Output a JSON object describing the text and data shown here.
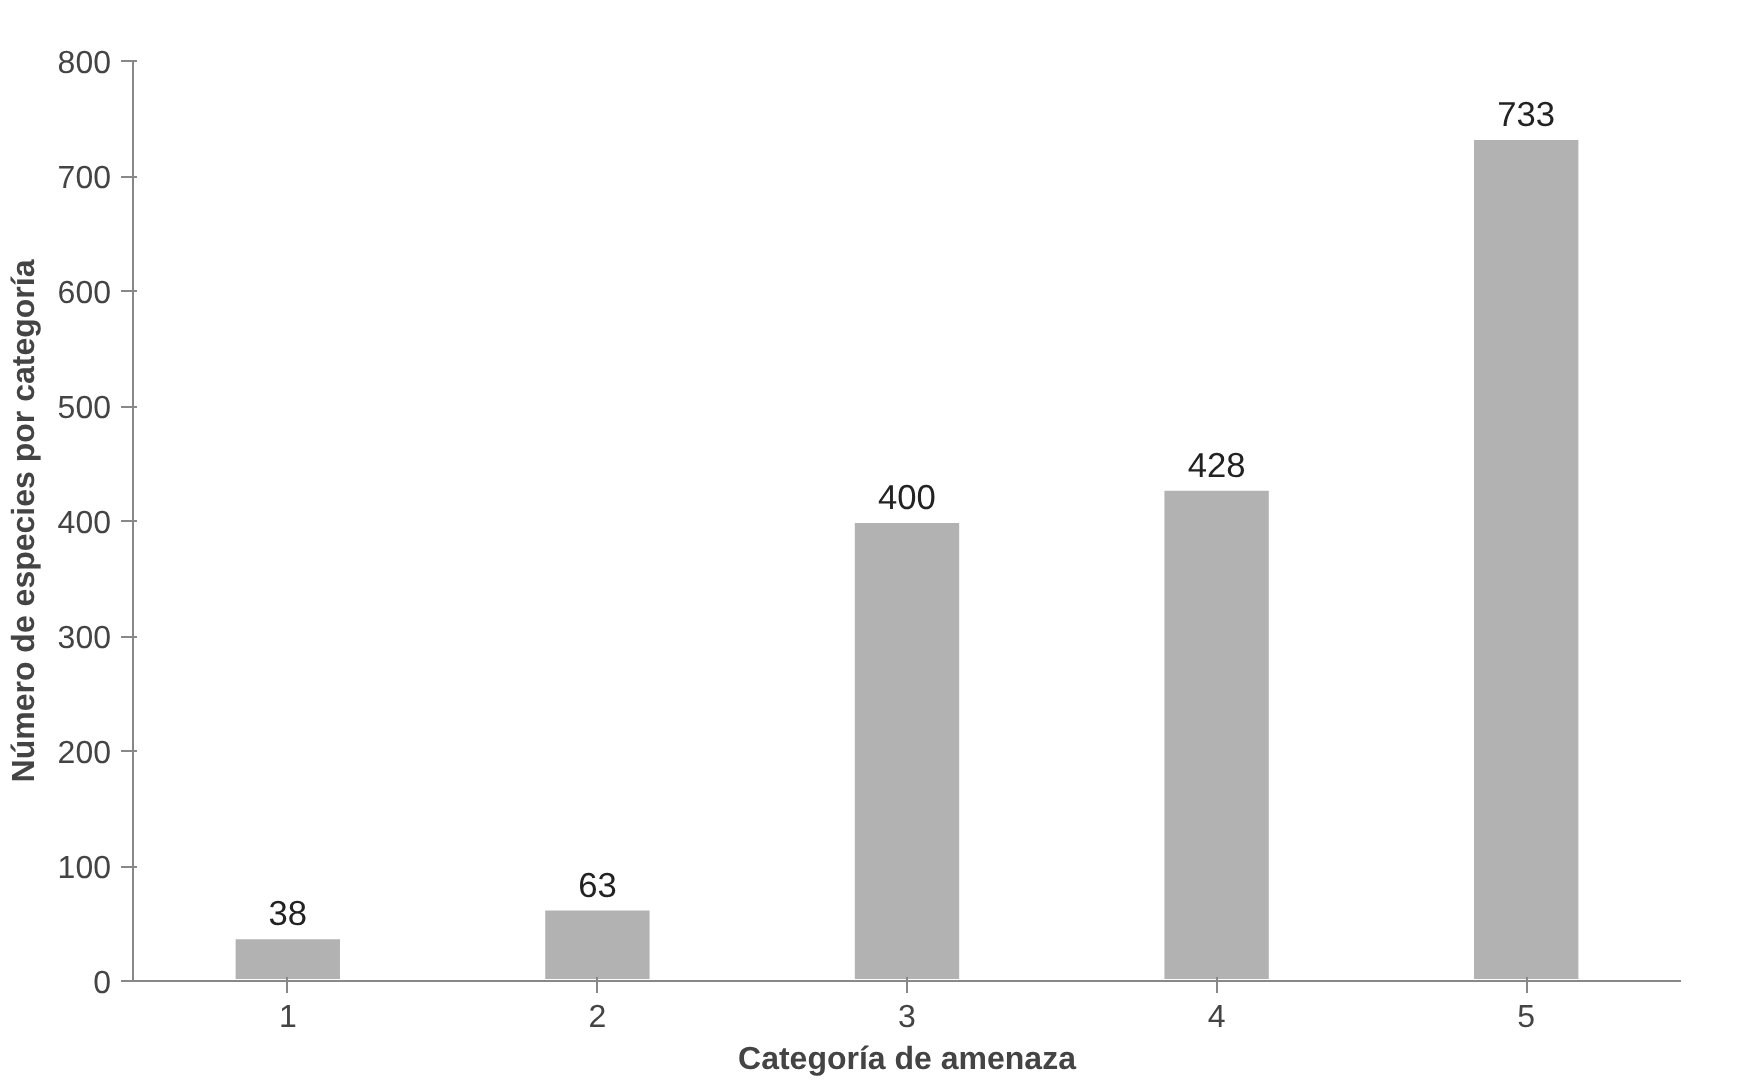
{
  "chart_data": {
    "type": "bar",
    "xlabel": "Categoría de amenaza",
    "ylabel": "Número de especies por categoría",
    "categories": [
      "1",
      "2",
      "3",
      "4",
      "5"
    ],
    "values": [
      38,
      63,
      400,
      428,
      733
    ],
    "color": "#b2b2b2",
    "ylim": [
      0,
      800
    ],
    "yticks": [
      0,
      100,
      200,
      300,
      400,
      500,
      600,
      700,
      800
    ],
    "grid": false,
    "data_labels": true
  }
}
